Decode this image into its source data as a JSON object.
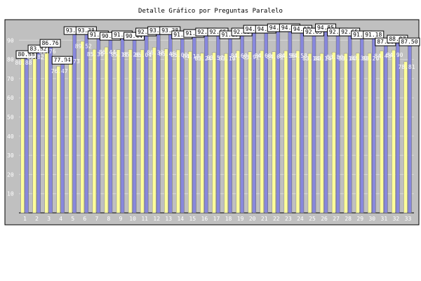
{
  "chart_data": {
    "type": "bar",
    "title": "Detalle Gráfico por Preguntas Paralelo",
    "xlabel": "",
    "ylabel": "",
    "ylim": [
      0,
      100
    ],
    "yticks": [
      10,
      20,
      30,
      40,
      50,
      60,
      70,
      80,
      90
    ],
    "grid": true,
    "legend": "none",
    "categories": [
      "1",
      "2",
      "3",
      "4",
      "5",
      "6",
      "7",
      "8",
      "9",
      "10",
      "11",
      "12",
      "13",
      "14",
      "15",
      "16",
      "17",
      "18",
      "19",
      "20",
      "21",
      "22",
      "23",
      "24",
      "25",
      "26",
      "27",
      "28",
      "29",
      "30",
      "31",
      "32",
      "33"
    ],
    "series": [
      {
        "values": [
          80.88,
          83.82,
          86.76,
          77.94,
          93.38,
          93.38,
          91.18,
          90.44,
          91.18,
          90.44,
          92.65,
          93.38,
          93.38,
          91.18,
          91.91,
          92.65,
          92.65,
          91.18,
          92.65,
          94.12,
          94.12,
          94.85,
          94.85,
          94.12,
          92.65,
          94.85,
          92.65,
          92.65,
          91.18,
          91.18,
          87.5,
          88.97,
          87.5
        ]
      },
      {
        "values": [
          80.88,
          83.82,
          86.76,
          76.47,
          81.73,
          89.52,
          85.3,
          86.44,
          85.11,
          85.2,
          85.04,
          86.32,
          85.45,
          85.0,
          84.18,
          83.24,
          83.57,
          83.1,
          84.6,
          83.97,
          84.6,
          84.0,
          84.56,
          84.58,
          83.14,
          83.14,
          83.8,
          83.14,
          83.3,
          83.2,
          84.43,
          84.9,
          78.81
        ]
      }
    ],
    "data_labels_shown": [
      80.88,
      83.82,
      86.76,
      77.94,
      93.38,
      93.38,
      91.18,
      90.44,
      91.18,
      90.44,
      92.65,
      93.38,
      93.38,
      91.18,
      91.91,
      92.65,
      92.65,
      91.18,
      92.65,
      94.12,
      94.12,
      94.85,
      94.85,
      94.12,
      92.65,
      94.85,
      92.65,
      92.65,
      91.18,
      91.18,
      87.5,
      88.97,
      87.5
    ],
    "colors": {
      "plot_bg": "#c0c0c0",
      "frame": "#000000",
      "bar_a": "#8888dd",
      "bar_b": "#ffff99",
      "label_bg": "#ffffff"
    }
  }
}
